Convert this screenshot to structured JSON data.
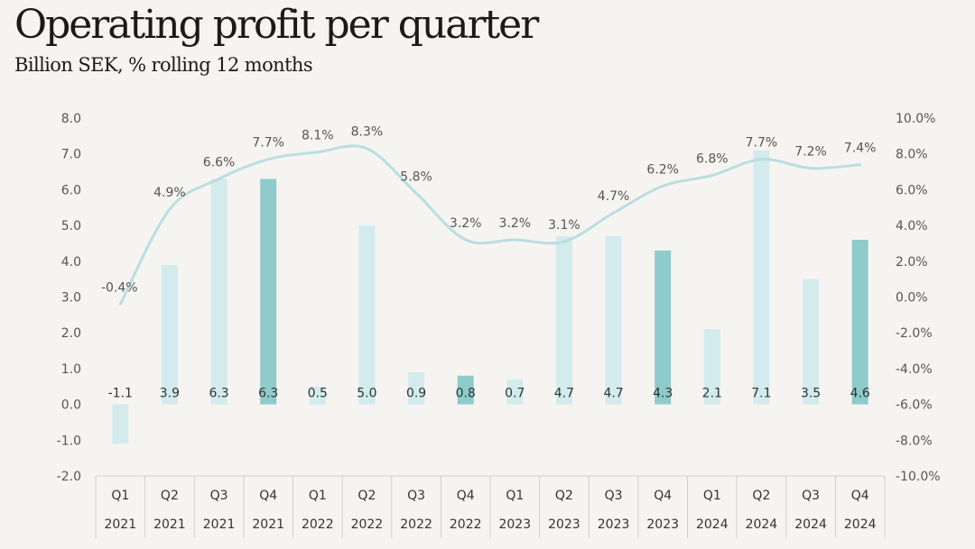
{
  "title": "Operating profit per quarter",
  "subtitle": "Billion SEK, % rolling 12 months",
  "chart_data": {
    "type": "bar",
    "categories": [
      [
        "Q1",
        "2021"
      ],
      [
        "Q2",
        "2021"
      ],
      [
        "Q3",
        "2021"
      ],
      [
        "Q4",
        "2021"
      ],
      [
        "Q1",
        "2022"
      ],
      [
        "Q2",
        "2022"
      ],
      [
        "Q3",
        "2022"
      ],
      [
        "Q4",
        "2022"
      ],
      [
        "Q1",
        "2023"
      ],
      [
        "Q2",
        "2023"
      ],
      [
        "Q3",
        "2023"
      ],
      [
        "Q4",
        "2023"
      ],
      [
        "Q1",
        "2024"
      ],
      [
        "Q2",
        "2024"
      ],
      [
        "Q3",
        "2024"
      ],
      [
        "Q4",
        "2024"
      ]
    ],
    "series": [
      {
        "values": [
          -1.1,
          3.9,
          6.3,
          6.3,
          0.5,
          5.0,
          0.9,
          0.8,
          0.7,
          4.7,
          4.7,
          4.3,
          2.1,
          7.1,
          3.5,
          4.6
        ],
        "labels": [
          "-1.1",
          "3.9",
          "6.3",
          "6.3",
          "0.5",
          "5.0",
          "0.9",
          "0.8",
          "0.7",
          "4.7",
          "4.7",
          "4.3",
          "2.1",
          "7.1",
          "3.5",
          "4.6"
        ],
        "color": "#d3ebec",
        "highlight_color": "#8fcbcb",
        "highlight_indices": [
          3,
          7,
          11,
          15
        ]
      },
      {
        "type": "line",
        "axis": "right",
        "values": [
          -0.4,
          4.9,
          6.6,
          7.7,
          8.1,
          8.3,
          5.8,
          3.2,
          3.2,
          3.1,
          4.7,
          6.2,
          6.8,
          7.7,
          7.2,
          7.4
        ],
        "labels": [
          "-0.4%",
          "4.9%",
          "6.6%",
          "7.7%",
          "8.1%",
          "8.3%",
          "5.8%",
          "3.2%",
          "3.2%",
          "3.1%",
          "4.7%",
          "6.2%",
          "6.8%",
          "7.7%",
          "7.2%",
          "7.4%"
        ],
        "color": "#b9dee0"
      }
    ],
    "y_left": {
      "ylim": [
        -2.0,
        8.0
      ],
      "ticks": [
        "-2.0",
        "-1.0",
        "0.0",
        "1.0",
        "2.0",
        "3.0",
        "4.0",
        "5.0",
        "6.0",
        "7.0",
        "8.0"
      ]
    },
    "y_right": {
      "ylim": [
        -10.0,
        10.0
      ],
      "ticks": [
        "-10.0%",
        "-8.0%",
        "-6.0%",
        "-4.0%",
        "-2.0%",
        "0.0%",
        "2.0%",
        "4.0%",
        "6.0%",
        "8.0%",
        "10.0%"
      ]
    },
    "grid": false
  }
}
